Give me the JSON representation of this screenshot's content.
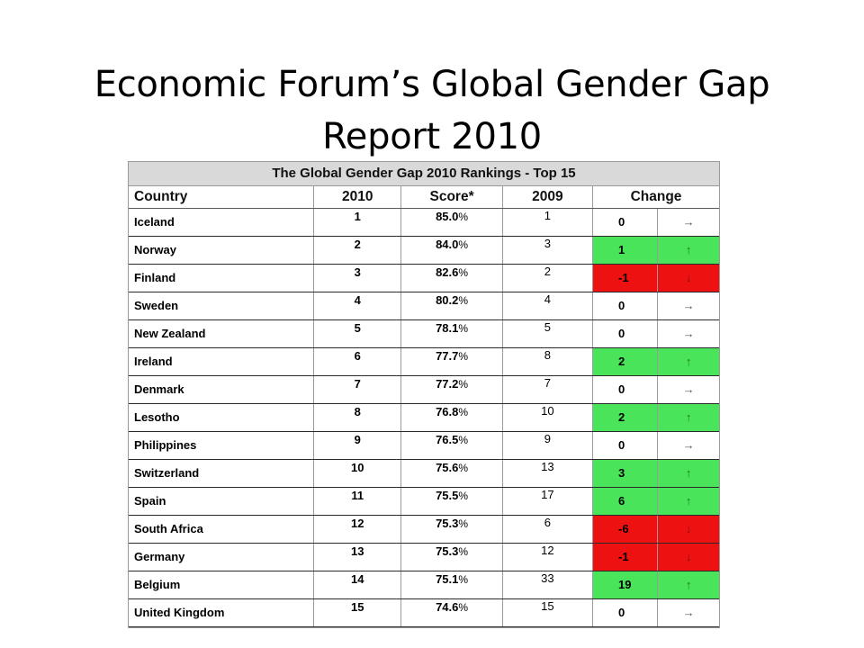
{
  "slide": {
    "title_line1": "Economic Forum’s Global Gender Gap",
    "title_line2": "Report 2010"
  },
  "table": {
    "caption": "The Global Gender Gap 2010 Rankings - Top 15",
    "columns": [
      "Country",
      "2010",
      "Score*",
      "2009",
      "Change"
    ],
    "rows": [
      {
        "country": "Iceland",
        "rank_2010": "1",
        "score": "85.0",
        "pct": "%",
        "rank_2009": "1",
        "change": "0",
        "direction": "flat",
        "arrow": "→"
      },
      {
        "country": "Norway",
        "rank_2010": "2",
        "score": "84.0",
        "pct": "%",
        "rank_2009": "3",
        "change": "1",
        "direction": "up",
        "arrow": "↑"
      },
      {
        "country": "Finland",
        "rank_2010": "3",
        "score": "82.6",
        "pct": "%",
        "rank_2009": "2",
        "change": "-1",
        "direction": "down",
        "arrow": "↓"
      },
      {
        "country": "Sweden",
        "rank_2010": "4",
        "score": "80.2",
        "pct": "%",
        "rank_2009": "4",
        "change": "0",
        "direction": "flat",
        "arrow": "→"
      },
      {
        "country": "New Zealand",
        "rank_2010": "5",
        "score": "78.1",
        "pct": "%",
        "rank_2009": "5",
        "change": "0",
        "direction": "flat",
        "arrow": "→"
      },
      {
        "country": "Ireland",
        "rank_2010": "6",
        "score": "77.7",
        "pct": "%",
        "rank_2009": "8",
        "change": "2",
        "direction": "up",
        "arrow": "↑"
      },
      {
        "country": "Denmark",
        "rank_2010": "7",
        "score": "77.2",
        "pct": "%",
        "rank_2009": "7",
        "change": "0",
        "direction": "flat",
        "arrow": "→"
      },
      {
        "country": "Lesotho",
        "rank_2010": "8",
        "score": "76.8",
        "pct": "%",
        "rank_2009": "10",
        "change": "2",
        "direction": "up",
        "arrow": "↑"
      },
      {
        "country": "Philippines",
        "rank_2010": "9",
        "score": "76.5",
        "pct": "%",
        "rank_2009": "9",
        "change": "0",
        "direction": "flat",
        "arrow": "→"
      },
      {
        "country": "Switzerland",
        "rank_2010": "10",
        "score": "75.6",
        "pct": "%",
        "rank_2009": "13",
        "change": "3",
        "direction": "up",
        "arrow": "↑"
      },
      {
        "country": "Spain",
        "rank_2010": "11",
        "score": "75.5",
        "pct": "%",
        "rank_2009": "17",
        "change": "6",
        "direction": "up",
        "arrow": "↑"
      },
      {
        "country": "South Africa",
        "rank_2010": "12",
        "score": "75.3",
        "pct": "%",
        "rank_2009": "6",
        "change": "-6",
        "direction": "down",
        "arrow": "↓"
      },
      {
        "country": "Germany",
        "rank_2010": "13",
        "score": "75.3",
        "pct": "%",
        "rank_2009": "12",
        "change": "-1",
        "direction": "down",
        "arrow": "↓"
      },
      {
        "country": "Belgium",
        "rank_2010": "14",
        "score": "75.1",
        "pct": "%",
        "rank_2009": "33",
        "change": "19",
        "direction": "up",
        "arrow": "↑"
      },
      {
        "country": "United Kingdom",
        "rank_2010": "15",
        "score": "74.6",
        "pct": "%",
        "rank_2009": "15",
        "change": "0",
        "direction": "flat",
        "arrow": "→"
      }
    ]
  },
  "colors": {
    "up": "#49e45a",
    "down": "#ee1111",
    "caption_bg": "#d9d9d9"
  }
}
